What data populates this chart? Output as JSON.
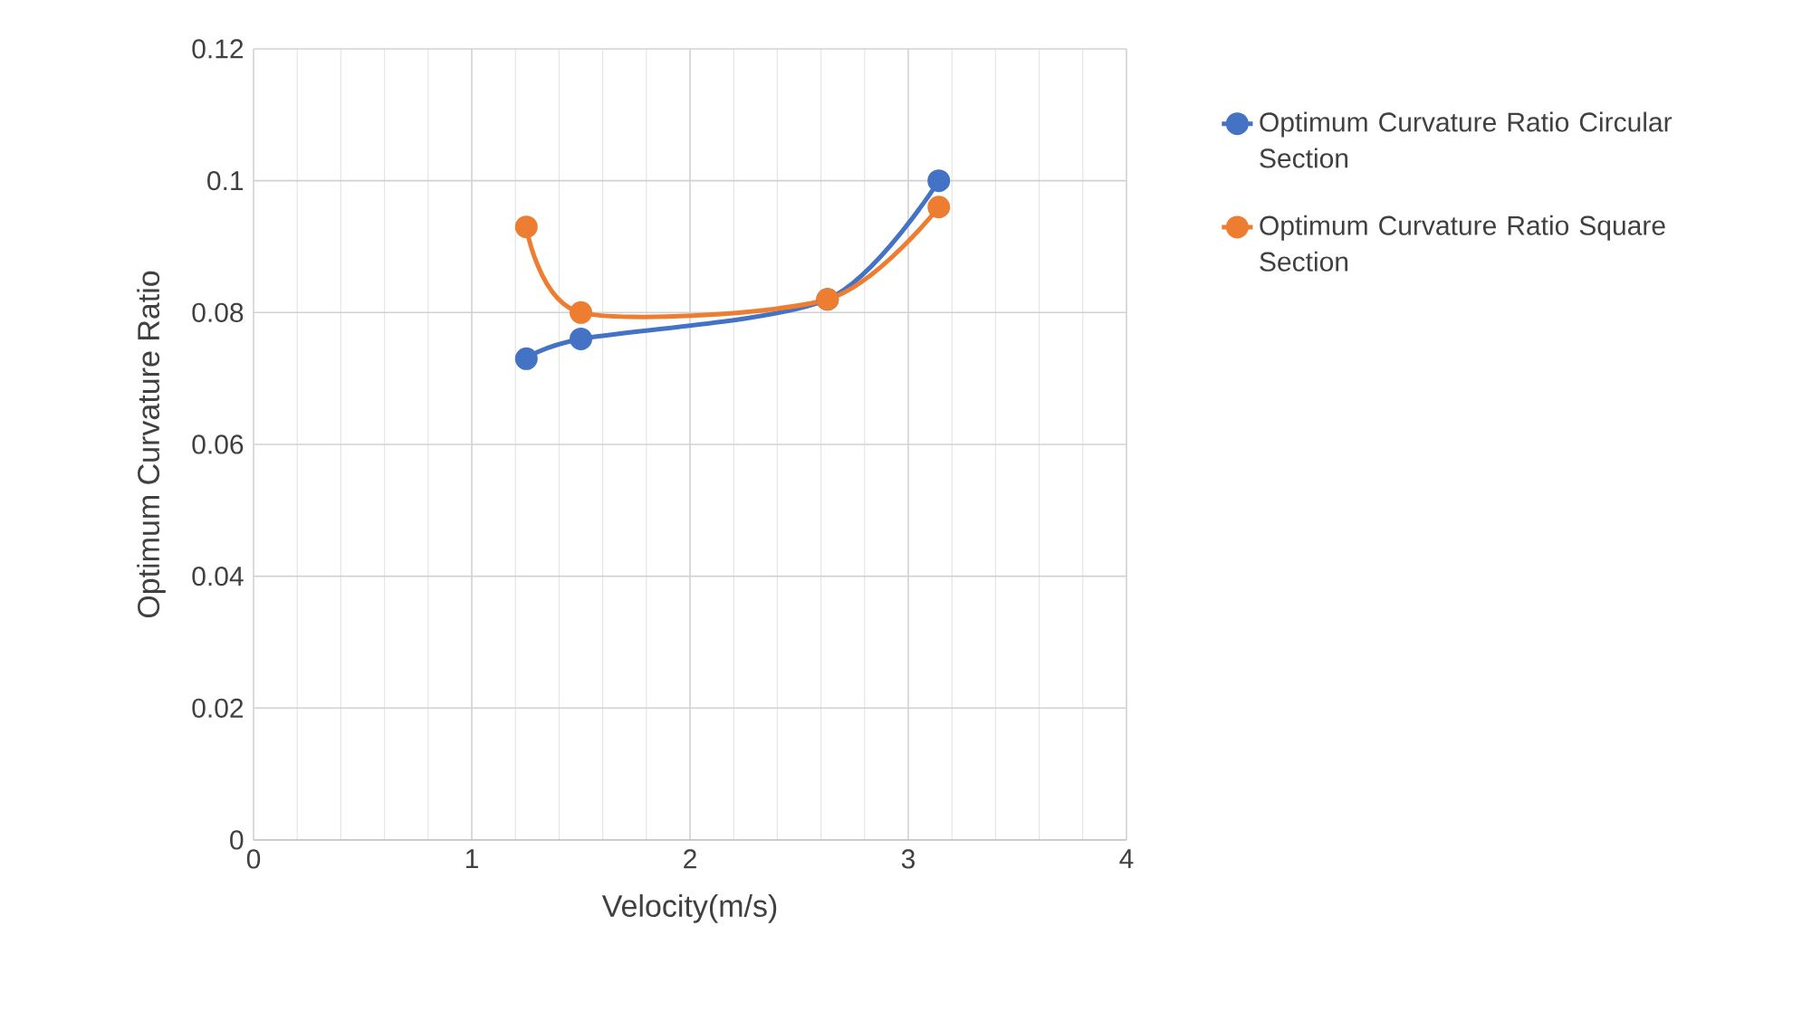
{
  "chart_data": {
    "type": "line",
    "xlabel": "Velocity(m/s)",
    "ylabel": "Optimum Curvature Ratio",
    "xlim": [
      0,
      4
    ],
    "xticks": [
      0,
      1,
      2,
      3,
      4
    ],
    "ylim": [
      0,
      0.12
    ],
    "yticks": [
      0,
      0.02,
      0.04,
      0.06,
      0.08,
      0.1,
      0.12
    ],
    "grid": true,
    "legend": "right",
    "marker": "circle",
    "line_style": "solid",
    "series": [
      {
        "name": "Optimum Curvature Ratio Circular Section",
        "color": "#4472c4",
        "x": [
          1.25,
          1.5,
          2.63,
          3.14
        ],
        "values": [
          0.073,
          0.076,
          0.082,
          0.1
        ]
      },
      {
        "name": "Optimum Curvature Ratio Square Section",
        "color": "#ed7d31",
        "x": [
          1.25,
          1.5,
          2.63,
          3.14
        ],
        "values": [
          0.093,
          0.08,
          0.082,
          0.096
        ]
      }
    ]
  }
}
